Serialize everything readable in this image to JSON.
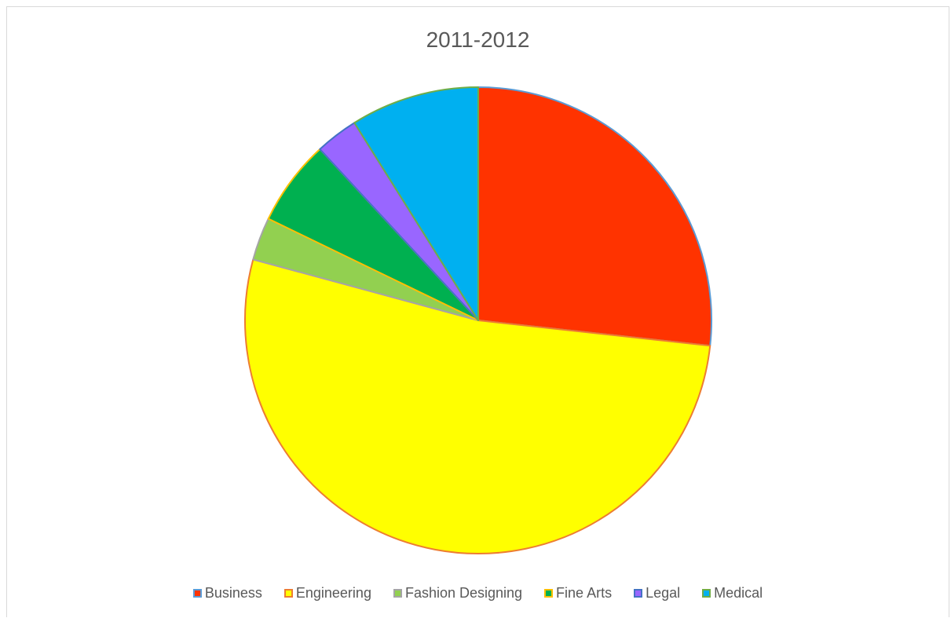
{
  "chart_data": {
    "type": "pie",
    "title": "2011-2012",
    "categories": [
      "Business",
      "Engineering",
      "Fashion Designing",
      "Fine Arts",
      "Legal",
      "Medical"
    ],
    "values": [
      27,
      53,
      3,
      6,
      3,
      9
    ],
    "colors": [
      "#ff3300",
      "#ffff00",
      "#92d050",
      "#00b050",
      "#9966ff",
      "#00b0f0"
    ],
    "borderColors": [
      "#5b9bd5",
      "#ed7d31",
      "#a5a5a5",
      "#ffc000",
      "#4472c4",
      "#70ad47"
    ],
    "legend_position": "bottom"
  }
}
